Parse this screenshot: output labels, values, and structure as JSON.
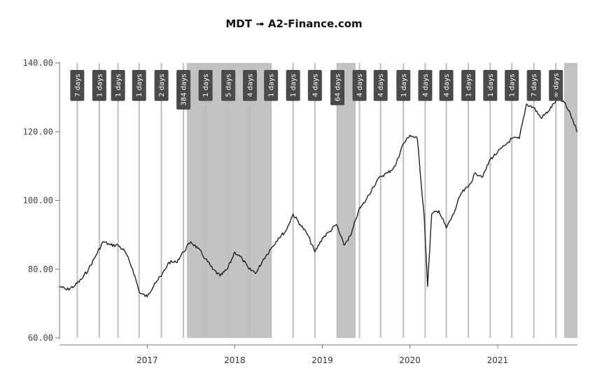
{
  "chart_data": {
    "type": "line",
    "title": "MDT ➟ A2-Finance.com",
    "xlabel": "",
    "ylabel": "",
    "xlim": [
      "2016-01-01",
      "2021-11-30"
    ],
    "ylim": [
      60,
      140
    ],
    "yticks": [
      "140.00",
      "120.00",
      "100.00",
      "80.00",
      "60.00"
    ],
    "ytick_values": [
      140,
      120,
      100,
      80,
      60
    ],
    "xticks": [
      "2017",
      "2018",
      "2019",
      "2020",
      "2021"
    ],
    "xtick_dates": [
      "2017-01-01",
      "2018-01-01",
      "2019-01-01",
      "2020-01-01",
      "2021-01-01"
    ],
    "grid": false,
    "series": [
      {
        "name": "",
        "color": "#222222",
        "x": [
          "2016-01-01",
          "2016-02-01",
          "2016-03-01",
          "2016-04-01",
          "2016-05-01",
          "2016-06-01",
          "2016-07-01",
          "2016-08-01",
          "2016-09-01",
          "2016-10-01",
          "2016-11-01",
          "2016-12-01",
          "2017-01-01",
          "2017-02-01",
          "2017-03-01",
          "2017-04-01",
          "2017-05-01",
          "2017-06-01",
          "2017-07-01",
          "2017-08-01",
          "2017-09-01",
          "2017-10-01",
          "2017-11-01",
          "2017-12-01",
          "2018-01-01",
          "2018-02-01",
          "2018-03-01",
          "2018-04-01",
          "2018-05-01",
          "2018-06-01",
          "2018-07-01",
          "2018-08-01",
          "2018-09-01",
          "2018-10-01",
          "2018-11-01",
          "2018-12-01",
          "2019-01-01",
          "2019-02-01",
          "2019-03-01",
          "2019-04-01",
          "2019-05-01",
          "2019-06-01",
          "2019-07-01",
          "2019-08-01",
          "2019-09-01",
          "2019-10-01",
          "2019-11-01",
          "2019-12-01",
          "2020-01-01",
          "2020-02-01",
          "2020-03-01",
          "2020-03-15",
          "2020-04-01",
          "2020-05-01",
          "2020-06-01",
          "2020-07-01",
          "2020-08-01",
          "2020-09-01",
          "2020-10-01",
          "2020-11-01",
          "2020-12-01",
          "2021-01-01",
          "2021-02-01",
          "2021-03-01",
          "2021-04-01",
          "2021-05-01",
          "2021-06-01",
          "2021-07-01",
          "2021-08-01",
          "2021-09-01",
          "2021-10-01",
          "2021-11-01",
          "2021-11-30"
        ],
        "values": [
          75,
          74,
          75,
          77,
          80,
          84,
          88,
          87,
          87,
          85,
          80,
          73,
          72,
          76,
          78,
          82,
          82,
          85,
          88,
          86,
          83,
          80,
          78,
          80,
          85,
          83,
          80,
          79,
          83,
          86,
          89,
          91,
          96,
          93,
          90,
          85,
          89,
          91,
          93,
          87,
          90,
          97,
          100,
          104,
          107,
          108,
          110,
          116,
          119,
          118,
          95,
          75,
          96,
          97,
          92,
          96,
          102,
          104,
          108,
          107,
          112,
          114,
          116,
          118,
          118,
          128,
          127,
          124,
          126,
          129,
          129,
          125,
          120
        ]
      }
    ],
    "shaded_regions": [
      {
        "start": "2017-06-15",
        "end": "2018-06-01"
      },
      {
        "start": "2019-03-01",
        "end": "2019-05-20"
      },
      {
        "start": "2021-10-05",
        "end": "2021-11-30"
      }
    ],
    "annotations": [
      {
        "date": "2016-03-15",
        "text": "7 days"
      },
      {
        "date": "2016-06-15",
        "text": "1 days"
      },
      {
        "date": "2016-09-01",
        "text": "1 days"
      },
      {
        "date": "2016-11-28",
        "text": "1 days"
      },
      {
        "date": "2017-03-01",
        "text": "2 days"
      },
      {
        "date": "2017-06-01",
        "text": "384 days"
      },
      {
        "date": "2017-09-01",
        "text": "1 days"
      },
      {
        "date": "2017-12-05",
        "text": "5 days"
      },
      {
        "date": "2018-03-05",
        "text": "4 days"
      },
      {
        "date": "2018-06-01",
        "text": "1 days"
      },
      {
        "date": "2018-09-01",
        "text": "1 days"
      },
      {
        "date": "2018-12-01",
        "text": "4 days"
      },
      {
        "date": "2019-03-05",
        "text": "64 days"
      },
      {
        "date": "2019-06-05",
        "text": "4 days"
      },
      {
        "date": "2019-09-01",
        "text": "4 days"
      },
      {
        "date": "2019-12-05",
        "text": "1 days"
      },
      {
        "date": "2020-03-05",
        "text": "4 days"
      },
      {
        "date": "2020-06-01",
        "text": "4 days"
      },
      {
        "date": "2020-09-01",
        "text": "1 days"
      },
      {
        "date": "2020-12-01",
        "text": "1 days"
      },
      {
        "date": "2021-03-01",
        "text": "1 days"
      },
      {
        "date": "2021-06-01",
        "text": "7 days"
      },
      {
        "date": "2021-09-01",
        "text": "∞ days"
      }
    ]
  }
}
